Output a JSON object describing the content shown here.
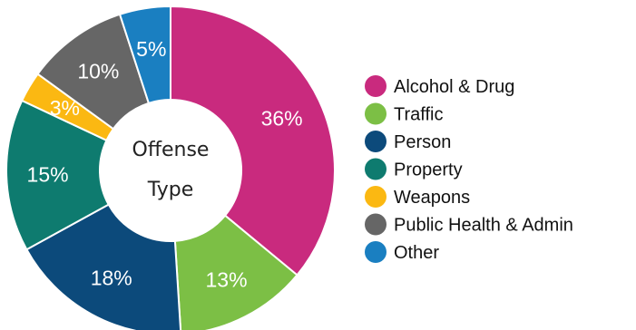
{
  "chart_data": {
    "type": "pie",
    "center_label": [
      "Offense",
      "Type"
    ],
    "slices": [
      {
        "name": "Alcohol & Drug",
        "value": 36,
        "label": "36%",
        "color": "#c92a7e"
      },
      {
        "name": "Traffic",
        "value": 13,
        "label": "13%",
        "color": "#7cbf45"
      },
      {
        "name": "Person",
        "value": 18,
        "label": "18%",
        "color": "#0c4a7b"
      },
      {
        "name": "Property",
        "value": 15,
        "label": "15%",
        "color": "#0e7b6f"
      },
      {
        "name": "Weapons",
        "value": 3,
        "label": "3%",
        "color": "#fbb812"
      },
      {
        "name": "Public Health & Admin",
        "value": 10,
        "label": "10%",
        "color": "#666666"
      },
      {
        "name": "Other",
        "value": 5,
        "label": "5%",
        "color": "#1a7fc1"
      }
    ],
    "legend_position": "right"
  }
}
